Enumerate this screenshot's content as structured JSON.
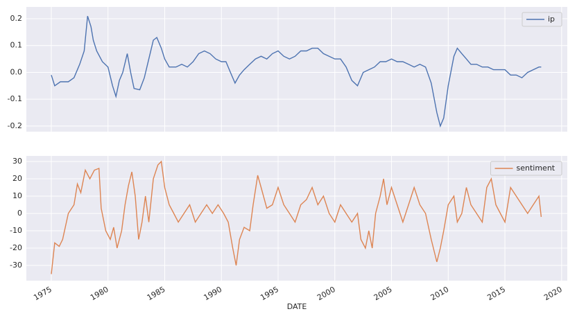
{
  "chart_data": [
    {
      "type": "line",
      "legend": "upper right",
      "grid": true,
      "xlim": [
        1972.8,
        2020.5
      ],
      "xticks": [
        1975,
        1980,
        1985,
        1990,
        1995,
        2000,
        2005,
        2010,
        2015,
        2020
      ],
      "ylim": [
        -0.221,
        0.244
      ],
      "yticks": [
        -0.2,
        -0.1,
        {
          "value": 0,
          "label": "0.0"
        },
        0.1,
        0.2
      ],
      "series": [
        {
          "name": "ip",
          "color": "#4c72b0",
          "x": [
            1975.0,
            1975.3,
            1975.8,
            1976.5,
            1977.0,
            1977.5,
            1977.9,
            1978.2,
            1978.5,
            1978.7,
            1979.0,
            1979.5,
            1980.0,
            1980.4,
            1980.7,
            1981.0,
            1981.3,
            1981.7,
            1982.0,
            1982.3,
            1982.8,
            1983.2,
            1983.6,
            1984.0,
            1984.3,
            1984.7,
            1985.0,
            1985.4,
            1986.0,
            1986.5,
            1987.0,
            1987.5,
            1988.0,
            1988.5,
            1989.0,
            1989.5,
            1990.0,
            1990.4,
            1990.8,
            1991.2,
            1991.6,
            1992.0,
            1992.5,
            1993.0,
            1993.5,
            1994.0,
            1994.5,
            1995.0,
            1995.5,
            1996.0,
            1996.5,
            1997.0,
            1997.5,
            1998.0,
            1998.5,
            1999.0,
            1999.5,
            2000.0,
            2000.5,
            2001.0,
            2001.5,
            2002.0,
            2002.5,
            2003.0,
            2003.5,
            2004.0,
            2004.5,
            2005.0,
            2005.5,
            2006.0,
            2006.5,
            2007.0,
            2007.5,
            2008.0,
            2008.5,
            2009.0,
            2009.3,
            2009.6,
            2010.0,
            2010.5,
            2010.8,
            2011.2,
            2011.6,
            2012.0,
            2012.5,
            2013.0,
            2013.5,
            2014.0,
            2014.5,
            2015.0,
            2015.5,
            2016.0,
            2016.5,
            2017.0,
            2017.5,
            2018.0,
            2018.2
          ],
          "values": [
            -0.01,
            -0.05,
            -0.035,
            -0.035,
            -0.02,
            0.03,
            0.08,
            0.21,
            0.17,
            0.12,
            0.08,
            0.04,
            0.02,
            -0.05,
            -0.09,
            -0.03,
            0.0,
            0.07,
            0.0,
            -0.06,
            -0.065,
            -0.02,
            0.05,
            0.12,
            0.13,
            0.09,
            0.05,
            0.02,
            0.02,
            0.03,
            0.02,
            0.04,
            0.07,
            0.08,
            0.07,
            0.05,
            0.04,
            0.04,
            0.0,
            -0.04,
            -0.01,
            0.01,
            0.03,
            0.05,
            0.06,
            0.05,
            0.07,
            0.08,
            0.06,
            0.05,
            0.06,
            0.08,
            0.08,
            0.09,
            0.09,
            0.07,
            0.06,
            0.05,
            0.05,
            0.02,
            -0.03,
            -0.05,
            0.0,
            0.01,
            0.02,
            0.04,
            0.04,
            0.05,
            0.04,
            0.04,
            0.03,
            0.02,
            0.03,
            0.02,
            -0.04,
            -0.15,
            -0.2,
            -0.17,
            -0.05,
            0.06,
            0.09,
            0.07,
            0.05,
            0.03,
            0.03,
            0.02,
            0.02,
            0.01,
            0.01,
            0.01,
            -0.01,
            -0.01,
            -0.02,
            0.0,
            0.01,
            0.02,
            0.02
          ]
        }
      ]
    },
    {
      "type": "line",
      "legend": "upper right",
      "grid": true,
      "xlabel": "DATE",
      "xlim": [
        1972.8,
        2020.5
      ],
      "xticks": [
        1975,
        1980,
        1985,
        1990,
        1995,
        2000,
        2005,
        2010,
        2015,
        2020
      ],
      "ylim": [
        -38.8,
        33.2
      ],
      "yticks": [
        -30,
        -20,
        -10,
        0,
        10,
        20,
        30
      ],
      "series": [
        {
          "name": "sentiment",
          "color": "#dd8452",
          "x": [
            1975.0,
            1975.3,
            1975.7,
            1976.0,
            1976.5,
            1977.0,
            1977.3,
            1977.6,
            1978.0,
            1978.4,
            1978.8,
            1979.2,
            1979.4,
            1979.8,
            1980.2,
            1980.5,
            1980.8,
            1981.2,
            1981.5,
            1981.8,
            1982.1,
            1982.4,
            1982.7,
            1983.0,
            1983.3,
            1983.6,
            1984.0,
            1984.4,
            1984.7,
            1985.0,
            1985.4,
            1985.8,
            1986.2,
            1986.7,
            1987.2,
            1987.7,
            1988.2,
            1988.7,
            1989.2,
            1989.7,
            1990.2,
            1990.6,
            1991.0,
            1991.3,
            1991.6,
            1992.0,
            1992.5,
            1992.8,
            1993.2,
            1993.5,
            1994.0,
            1994.5,
            1995.0,
            1995.5,
            1996.0,
            1996.5,
            1997.0,
            1997.5,
            1998.0,
            1998.5,
            1999.0,
            1999.5,
            2000.0,
            2000.5,
            2001.0,
            2001.5,
            2002.0,
            2002.3,
            2002.7,
            2003.0,
            2003.3,
            2003.6,
            2004.0,
            2004.3,
            2004.6,
            2005.0,
            2005.5,
            2006.0,
            2006.5,
            2007.0,
            2007.5,
            2008.0,
            2008.5,
            2009.0,
            2009.3,
            2009.6,
            2010.0,
            2010.5,
            2010.8,
            2011.2,
            2011.6,
            2012.0,
            2012.5,
            2013.0,
            2013.4,
            2013.8,
            2014.2,
            2014.6,
            2015.0,
            2015.5,
            2016.0,
            2016.5,
            2017.0,
            2017.5,
            2018.0,
            2018.2
          ],
          "values": [
            -35,
            -17,
            -19,
            -15,
            0,
            5,
            17,
            12,
            25,
            20,
            25,
            26,
            3,
            -10,
            -15,
            -8,
            -20,
            -10,
            5,
            16,
            24,
            10,
            -15,
            -5,
            10,
            -5,
            20,
            28,
            30,
            15,
            5,
            0,
            -5,
            0,
            5,
            -5,
            0,
            5,
            0,
            5,
            0,
            -5,
            -20,
            -30,
            -15,
            -8,
            -10,
            5,
            22,
            15,
            3,
            5,
            15,
            5,
            0,
            -5,
            5,
            8,
            15,
            5,
            10,
            0,
            -5,
            5,
            0,
            -5,
            0,
            -15,
            -20,
            -10,
            -20,
            0,
            10,
            20,
            5,
            15,
            5,
            -5,
            5,
            15,
            5,
            0,
            -15,
            -28,
            -20,
            -10,
            5,
            10,
            -5,
            0,
            15,
            5,
            0,
            -5,
            15,
            20,
            5,
            0,
            -5,
            15,
            10,
            5,
            0,
            5,
            10,
            -2
          ]
        }
      ]
    }
  ]
}
